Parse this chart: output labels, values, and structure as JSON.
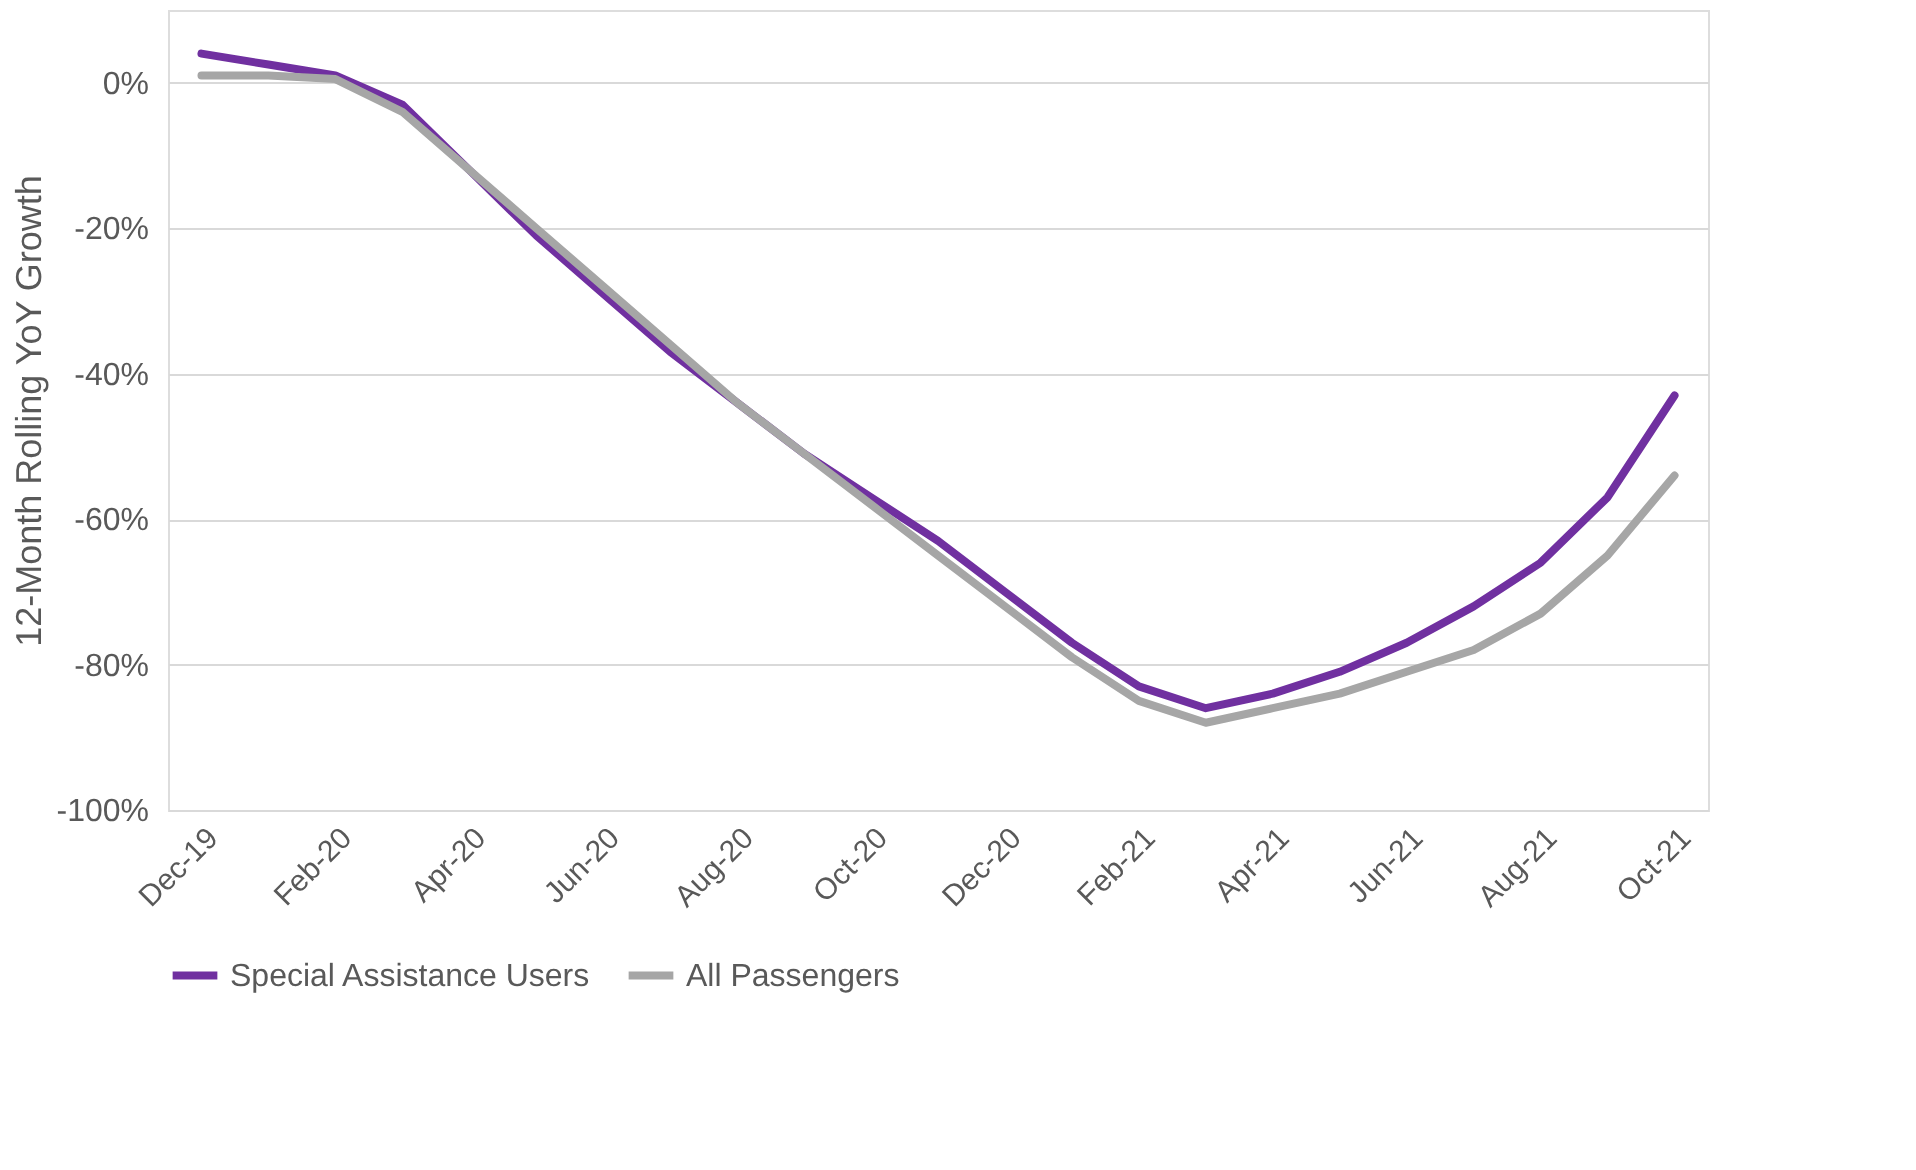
{
  "chart_data": {
    "type": "line",
    "ylabel": "12-Month Rolling YoY Growth",
    "categories": [
      "Dec-19",
      null,
      "Feb-20",
      null,
      "Apr-20",
      null,
      "Jun-20",
      null,
      "Aug-20",
      null,
      "Oct-20",
      null,
      "Dec-20",
      null,
      "Feb-21",
      null,
      "Apr-21",
      null,
      "Jun-21",
      null,
      "Aug-21",
      null,
      "Oct-21"
    ],
    "series": [
      {
        "name": "Special Assistance Users",
        "color": "#7030a0",
        "values": [
          4,
          2.5,
          1,
          -3,
          -12,
          -21,
          -29,
          -37,
          -44,
          -51,
          -57,
          -63,
          -70,
          -77,
          -83,
          -86,
          -84,
          -81,
          -77,
          -72,
          -66,
          -57,
          -43
        ]
      },
      {
        "name": "All Passengers",
        "color": "#a6a6a6",
        "values": [
          1,
          1,
          0.5,
          -4,
          -12,
          -20,
          -28,
          -36,
          -44,
          -51,
          -58,
          -65,
          -72,
          -79,
          -85,
          -88,
          -86,
          -84,
          -81,
          -78,
          -73,
          -65,
          -54
        ]
      }
    ],
    "ylim": [
      -100,
      10
    ],
    "yticks": [
      {
        "value": 0,
        "label": "0%"
      },
      {
        "value": -20,
        "label": "-20%"
      },
      {
        "value": -40,
        "label": "-40%"
      },
      {
        "value": -60,
        "label": "-60%"
      },
      {
        "value": -80,
        "label": "-80%"
      },
      {
        "value": -100,
        "label": "-100%"
      }
    ],
    "grid": "y",
    "legend": "bottom",
    "marker": "none",
    "line_style": "solid"
  }
}
